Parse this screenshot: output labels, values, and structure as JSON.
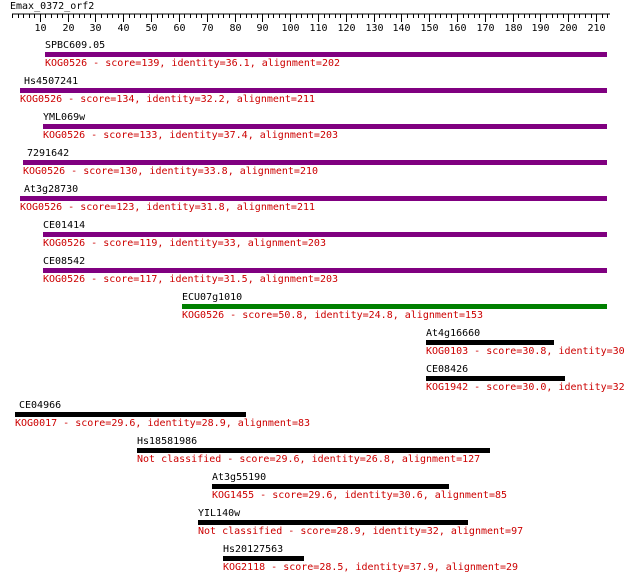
{
  "query": {
    "name": "Emax_0372_orf2",
    "length": 215
  },
  "axis": {
    "ticks": [
      10,
      20,
      30,
      40,
      50,
      60,
      70,
      80,
      90,
      100,
      110,
      120,
      130,
      140,
      150,
      160,
      170,
      180,
      190,
      200,
      210
    ]
  },
  "colors": {
    "purple": "#800080",
    "green": "#008000",
    "black": "#000000",
    "desc": "#cc0000"
  },
  "hits": [
    {
      "name": "SPBC609.05",
      "desc": "KOG0526 - score=139, identity=36.1, alignment=202",
      "start": 12,
      "end": 214,
      "color": "purple"
    },
    {
      "name": "Hs4507241",
      "desc": "KOG0526 - score=134, identity=32.2, alignment=211",
      "start": 3,
      "end": 214,
      "color": "purple"
    },
    {
      "name": "YML069w",
      "desc": "KOG0526 - score=133, identity=37.4, alignment=203",
      "start": 11,
      "end": 214,
      "color": "purple"
    },
    {
      "name": "7291642",
      "desc": "KOG0526 - score=130, identity=33.8, alignment=210",
      "start": 4,
      "end": 214,
      "color": "purple"
    },
    {
      "name": "At3g28730",
      "desc": "KOG0526 - score=123, identity=31.8, alignment=211",
      "start": 3,
      "end": 214,
      "color": "purple"
    },
    {
      "name": "CE01414",
      "desc": "KOG0526 - score=119, identity=33, alignment=203",
      "start": 11,
      "end": 214,
      "color": "purple"
    },
    {
      "name": "CE08542",
      "desc": "KOG0526 - score=117, identity=31.5, alignment=203",
      "start": 11,
      "end": 214,
      "color": "purple"
    },
    {
      "name": "ECU07g1010",
      "desc": "KOG0526 - score=50.8, identity=24.8, alignment=153",
      "start": 61,
      "end": 214,
      "color": "green"
    },
    {
      "name": "At4g16660",
      "desc": "KOG0103 - score=30.8, identity=30",
      "start": 149,
      "end": 195,
      "color": "black"
    },
    {
      "name": "CE08426",
      "desc": "KOG1942 - score=30.0, identity=32",
      "start": 149,
      "end": 199,
      "color": "black"
    },
    {
      "name": "CE04966",
      "desc": "KOG0017 - score=29.6, identity=28.9, alignment=83",
      "start": 1,
      "end": 84,
      "color": "black"
    },
    {
      "name": "Hs18581986",
      "desc": "Not classified - score=29.6, identity=26.8, alignment=127",
      "start": 45,
      "end": 172,
      "color": "black"
    },
    {
      "name": "At3g55190",
      "desc": "KOG1455 - score=29.6, identity=30.6, alignment=85",
      "start": 72,
      "end": 157,
      "color": "black"
    },
    {
      "name": "YIL140w",
      "desc": "Not classified - score=28.9, identity=32, alignment=97",
      "start": 67,
      "end": 164,
      "color": "black"
    },
    {
      "name": "Hs20127563",
      "desc": "KOG2118 - score=28.5, identity=37.9, alignment=29",
      "start": 76,
      "end": 105,
      "color": "black"
    }
  ]
}
